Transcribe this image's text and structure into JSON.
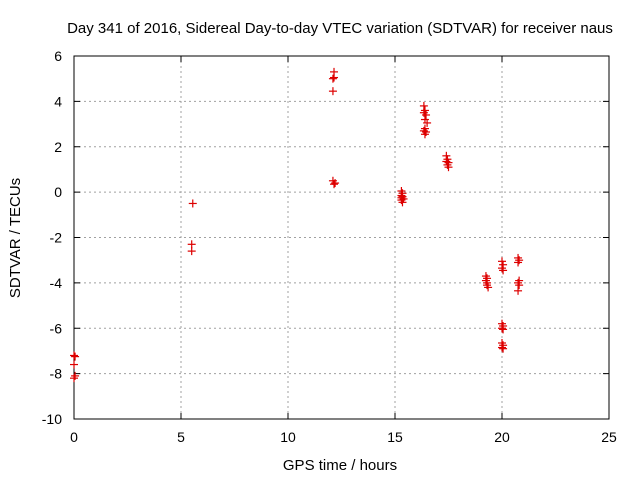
{
  "chart_data": {
    "type": "scatter",
    "title": "Day 341 of 2016, Sidereal Day-to-day VTEC variation (SDTVAR) for receiver naus",
    "xlabel": "GPS time / hours",
    "ylabel": "SDTVAR / TECUs",
    "xlim": [
      0,
      25
    ],
    "ylim": [
      -10,
      6
    ],
    "xticks": [
      0,
      5,
      10,
      15,
      20,
      25
    ],
    "yticks": [
      -10,
      -8,
      -6,
      -4,
      -2,
      0,
      2,
      4,
      6
    ],
    "xtick_labels": [
      "0",
      "5",
      "10",
      "15",
      "20",
      "25"
    ],
    "ytick_labels": [
      "-10",
      "-8",
      "-6",
      "-4",
      "-2",
      "0",
      "2",
      "4",
      "6"
    ],
    "grid": true,
    "marker": "+",
    "color": "#dd0000",
    "series": [
      {
        "name": "SDTVAR",
        "points": [
          [
            0.0,
            -7.2
          ],
          [
            0.05,
            -7.25
          ],
          [
            0.0,
            -7.6
          ],
          [
            0.05,
            -8.1
          ],
          [
            0.0,
            -8.2
          ],
          [
            5.55,
            -0.5
          ],
          [
            5.5,
            -2.3
          ],
          [
            5.5,
            -2.6
          ],
          [
            12.15,
            5.3
          ],
          [
            12.15,
            5.05
          ],
          [
            12.1,
            5.0
          ],
          [
            12.1,
            4.45
          ],
          [
            12.1,
            0.5
          ],
          [
            12.15,
            0.35
          ],
          [
            12.2,
            0.4
          ],
          [
            15.3,
            0.05
          ],
          [
            15.35,
            -0.05
          ],
          [
            15.3,
            -0.15
          ],
          [
            15.35,
            -0.2
          ],
          [
            15.3,
            -0.25
          ],
          [
            15.4,
            -0.3
          ],
          [
            15.3,
            -0.35
          ],
          [
            15.35,
            -0.45
          ],
          [
            16.35,
            3.8
          ],
          [
            16.4,
            3.6
          ],
          [
            16.35,
            3.5
          ],
          [
            16.45,
            3.4
          ],
          [
            16.4,
            3.2
          ],
          [
            16.5,
            3.05
          ],
          [
            16.4,
            2.8
          ],
          [
            16.35,
            2.7
          ],
          [
            16.45,
            2.65
          ],
          [
            16.4,
            2.55
          ],
          [
            17.4,
            1.6
          ],
          [
            17.45,
            1.45
          ],
          [
            17.4,
            1.35
          ],
          [
            17.5,
            1.3
          ],
          [
            17.45,
            1.2
          ],
          [
            17.5,
            1.1
          ],
          [
            19.25,
            -3.7
          ],
          [
            19.3,
            -3.8
          ],
          [
            19.25,
            -3.9
          ],
          [
            19.3,
            -4.0
          ],
          [
            19.3,
            -4.1
          ],
          [
            19.35,
            -4.2
          ],
          [
            20.0,
            -3.05
          ],
          [
            20.05,
            -3.2
          ],
          [
            20.0,
            -3.35
          ],
          [
            20.05,
            -3.45
          ],
          [
            20.0,
            -5.8
          ],
          [
            20.05,
            -5.9
          ],
          [
            20.0,
            -6.0
          ],
          [
            20.05,
            -6.05
          ],
          [
            20.0,
            -6.65
          ],
          [
            20.05,
            -6.75
          ],
          [
            20.0,
            -6.85
          ],
          [
            20.05,
            -6.9
          ],
          [
            20.75,
            -2.9
          ],
          [
            20.8,
            -3.0
          ],
          [
            20.75,
            -3.1
          ],
          [
            20.8,
            -3.9
          ],
          [
            20.75,
            -4.0
          ],
          [
            20.8,
            -4.1
          ],
          [
            20.75,
            -4.35
          ]
        ]
      }
    ]
  }
}
